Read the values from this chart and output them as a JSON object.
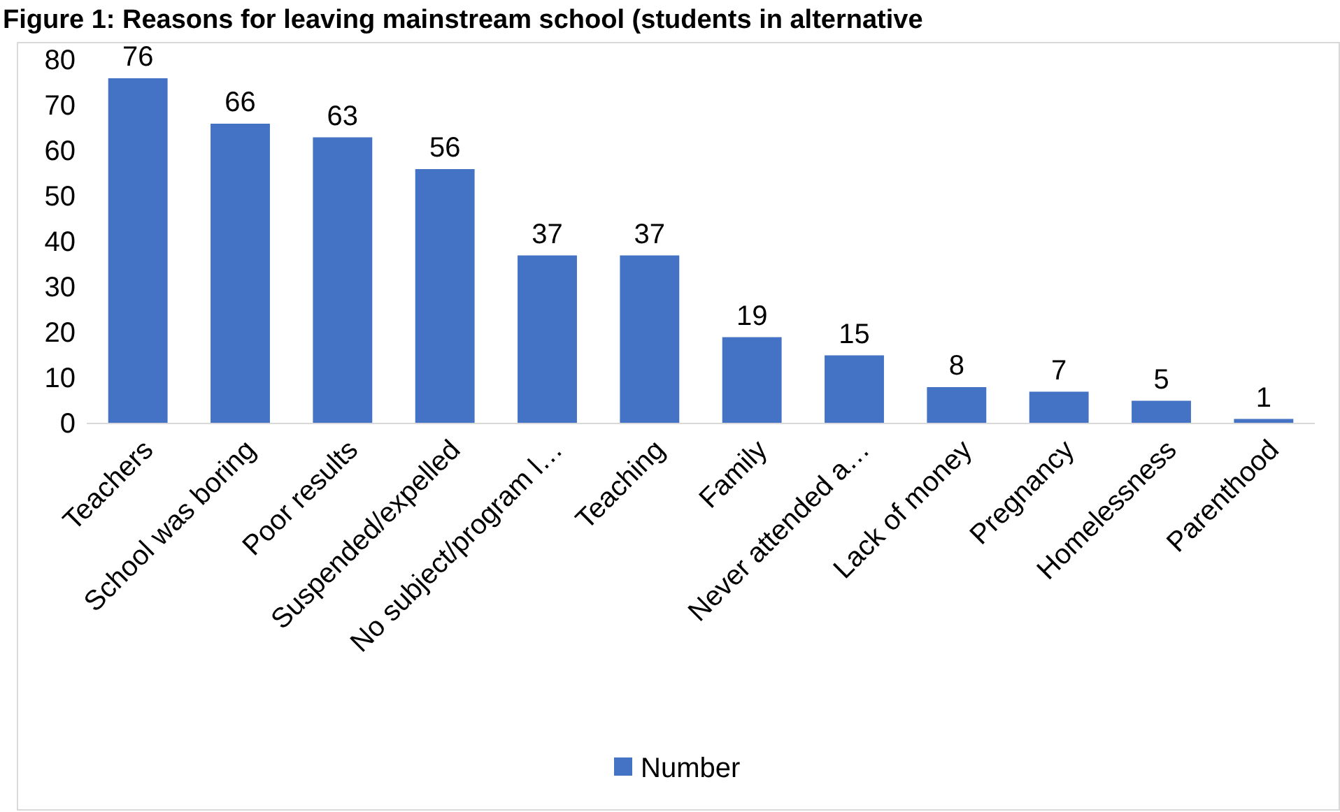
{
  "chart_data": {
    "type": "bar",
    "title": "Figure 1: Reasons for leaving mainstream school (students in alternative",
    "categories": [
      "Teachers",
      "School was boring",
      "Poor results",
      "Suspended/expelled",
      "No subject/program l…",
      "Teaching",
      "Family",
      "Never attended a…",
      "Lack of money",
      "Pregnancy",
      "Homelessness",
      "Parenthood"
    ],
    "series": [
      {
        "name": "Number",
        "color": "#4472c4",
        "values": [
          76,
          66,
          63,
          56,
          37,
          37,
          19,
          15,
          8,
          7,
          5,
          1
        ]
      }
    ],
    "ylim": [
      0,
      80
    ],
    "yticks": [
      0,
      10,
      20,
      30,
      40,
      50,
      60,
      70,
      80
    ],
    "data_labels": true,
    "legend": "bottom",
    "grid": false
  }
}
